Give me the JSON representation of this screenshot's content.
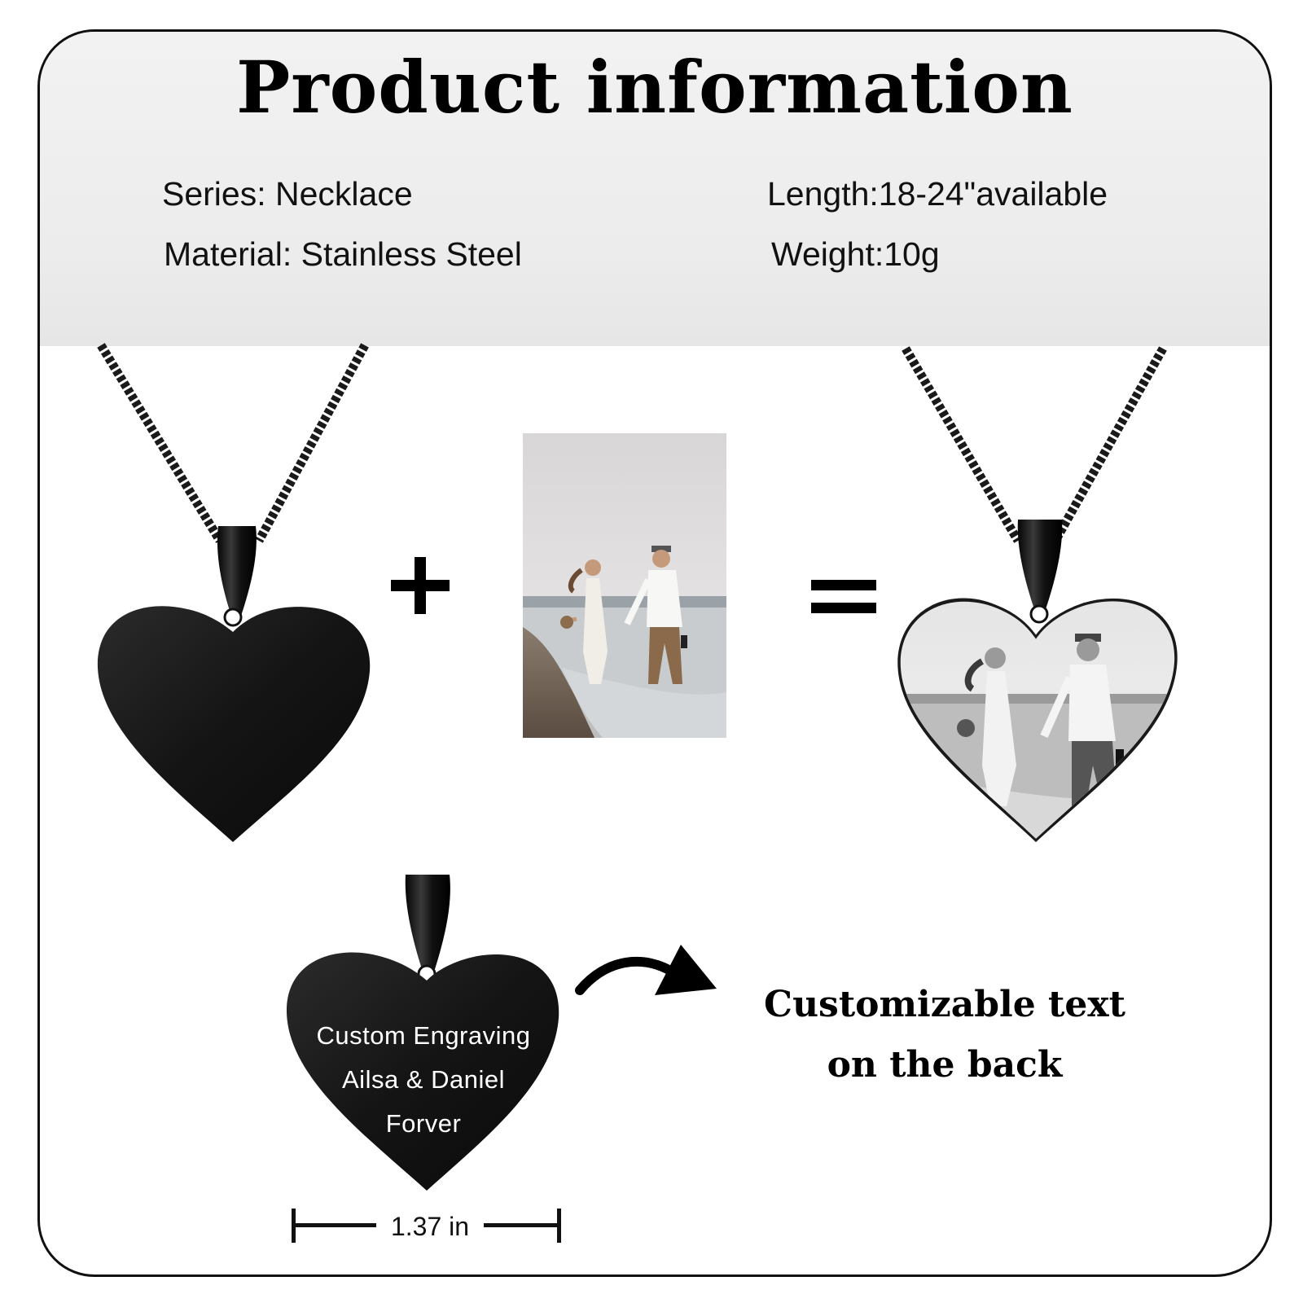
{
  "title": "Product information",
  "specs": {
    "series": "Series: Necklace",
    "material": "Material: Stainless Steel",
    "length": "Length:18-24\"available",
    "weight": "Weight:10g"
  },
  "equation": {
    "plus": "+",
    "equals": "="
  },
  "engraving": {
    "line1": "Custom Engraving",
    "line2": "Ailsa & Daniel",
    "line3": "Forver"
  },
  "dimension": {
    "width_label": "1.37 in"
  },
  "caption": {
    "line1": "Customizable text",
    "line2": "on the back"
  },
  "colors": {
    "pendant": "#141414",
    "border": "#111111",
    "header_band": "#ececec",
    "background": "#ffffff"
  },
  "icons": [
    "plus-icon",
    "equals-icon",
    "curved-arrow-icon",
    "dimension-bracket-icon"
  ]
}
